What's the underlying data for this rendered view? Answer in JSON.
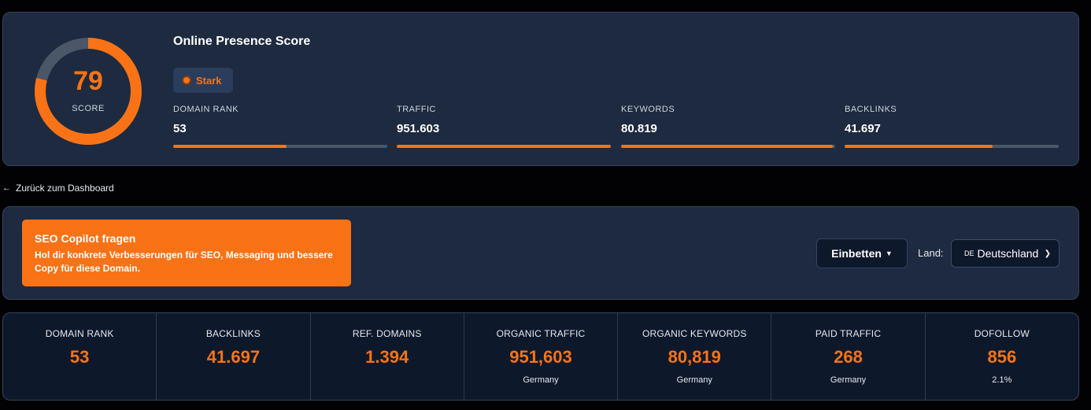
{
  "score": {
    "value": "79",
    "label": "SCORE",
    "fraction": 0.79,
    "title": "Online Presence Score",
    "badge": "Stark",
    "metrics": [
      {
        "label": "DOMAIN RANK",
        "value": "53",
        "fill": 0.53
      },
      {
        "label": "TRAFFIC",
        "value": "951.603",
        "fill": 1.0
      },
      {
        "label": "KEYWORDS",
        "value": "80.819",
        "fill": 0.99
      },
      {
        "label": "BACKLINKS",
        "value": "41.697",
        "fill": 0.69
      }
    ]
  },
  "nav": {
    "back_label": "Zurück zum Dashboard"
  },
  "copilot": {
    "title": "SEO Copilot fragen",
    "description": "Hol dir konkrete Verbesserungen für SEO, Messaging und bessere Copy für diese Domain."
  },
  "toolbar": {
    "embed_label": "Einbetten",
    "land_label": "Land:",
    "country_code": "DE",
    "country_name": "Deutschland"
  },
  "stats": [
    {
      "label": "DOMAIN RANK",
      "value": "53",
      "sub": ""
    },
    {
      "label": "BACKLINKS",
      "value": "41.697",
      "sub": ""
    },
    {
      "label": "REF. DOMAINS",
      "value": "1.394",
      "sub": ""
    },
    {
      "label": "ORGANIC TRAFFIC",
      "value": "951,603",
      "sub": "Germany"
    },
    {
      "label": "ORGANIC KEYWORDS",
      "value": "80,819",
      "sub": "Germany"
    },
    {
      "label": "PAID TRAFFIC",
      "value": "268",
      "sub": "Germany"
    },
    {
      "label": "DOFOLLOW",
      "value": "856",
      "sub": "2.1%"
    }
  ],
  "colors": {
    "accent": "#f97316",
    "card": "#1d2a3f",
    "track": "#4b5668"
  },
  "icons": {
    "back": "arrow-left-icon",
    "embed": "caret-down-icon",
    "select": "chevron-down-icon",
    "badge": "status-dot-icon"
  }
}
